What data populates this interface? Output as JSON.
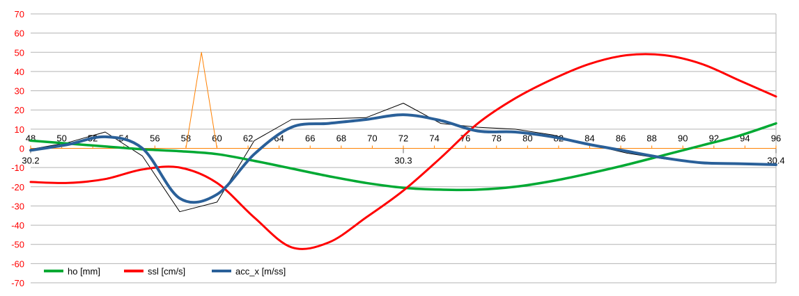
{
  "chart_data": {
    "type": "line",
    "ylim": [
      -70,
      70
    ],
    "y_ticks": [
      "70",
      "60",
      "50",
      "40",
      "30",
      "20",
      "10",
      "0",
      "-10",
      "-20",
      "-30",
      "-40",
      "-50",
      "-60",
      "-70"
    ],
    "x_primary_range": [
      48,
      96
    ],
    "x_ticks": [
      "48",
      "50",
      "52",
      "54",
      "56",
      "58",
      "60",
      "62",
      "64",
      "66",
      "68",
      "70",
      "72",
      "74",
      "76",
      "78",
      "80",
      "82",
      "84",
      "86",
      "88",
      "90",
      "92",
      "94",
      "96"
    ],
    "x_secondary_range": [
      30.2,
      30.4
    ],
    "x_secondary_ticks": [
      "30.2",
      "30.3",
      "30.4"
    ],
    "grid": "horizontal",
    "legend": "bottom-left",
    "series": [
      {
        "name": "ho [mm]",
        "color": "#00a933",
        "axis": "secondary",
        "x": [
          30.2,
          30.21,
          30.22,
          30.23,
          30.24,
          30.25,
          30.26,
          30.27,
          30.28,
          30.29,
          30.3,
          30.31,
          30.32,
          30.33,
          30.34,
          30.35,
          30.36,
          30.37,
          30.38,
          30.39,
          30.4
        ],
        "values": [
          4,
          2.5,
          1,
          -0.5,
          -1.5,
          -3,
          -6.5,
          -10.5,
          -14.5,
          -18,
          -20.5,
          -21.5,
          -21.5,
          -20,
          -17,
          -13,
          -8.5,
          -3.5,
          1.5,
          6.5,
          13
        ]
      },
      {
        "name": "ssl [cm/s]",
        "color": "#ff0000",
        "axis": "secondary",
        "x": [
          30.2,
          30.21,
          30.22,
          30.23,
          30.24,
          30.25,
          30.26,
          30.27,
          30.28,
          30.29,
          30.3,
          30.31,
          30.32,
          30.33,
          30.34,
          30.35,
          30.36,
          30.37,
          30.38,
          30.39,
          30.4
        ],
        "values": [
          -17.5,
          -18,
          -16,
          -11,
          -10,
          -18,
          -36,
          -51.5,
          -49,
          -36,
          -22,
          -5,
          13,
          26,
          36,
          44,
          48.5,
          48.5,
          44,
          35.5,
          27
        ]
      },
      {
        "name": "acc_x [m/ss]",
        "color": "#2a6099",
        "axis": "secondary",
        "x": [
          30.2,
          30.21,
          30.22,
          30.23,
          30.24,
          30.25,
          30.26,
          30.27,
          30.28,
          30.29,
          30.3,
          30.31,
          30.32,
          30.33,
          30.34,
          30.35,
          30.36,
          30.37,
          30.38,
          30.39,
          30.4
        ],
        "values": [
          -1,
          2,
          6,
          0,
          -26,
          -24,
          -3,
          11,
          13,
          15,
          17.5,
          14.5,
          9,
          8.5,
          6,
          2,
          -1.5,
          -5,
          -7.5,
          -8,
          -8.5
        ]
      },
      {
        "color": "#000000",
        "axis": "secondary",
        "x": [
          30.2,
          30.21,
          30.22,
          30.23,
          30.24,
          30.25,
          30.26,
          30.27,
          30.28,
          30.29,
          30.3,
          30.31,
          30.32,
          30.33,
          30.34,
          30.35,
          30.36,
          30.37,
          30.38,
          30.39,
          30.4
        ],
        "values": [
          -0.5,
          3,
          8.5,
          -4,
          -33,
          -28,
          4,
          15,
          15.5,
          16,
          23.5,
          13,
          11,
          10,
          7,
          2,
          -2.5,
          -5.5,
          -7.5,
          -8,
          -8.5
        ]
      },
      {
        "color": "#ff8000",
        "axis": "primary",
        "x": [
          48,
          58,
          59,
          60,
          96
        ],
        "values": [
          0,
          0,
          50,
          0,
          0
        ]
      }
    ]
  }
}
